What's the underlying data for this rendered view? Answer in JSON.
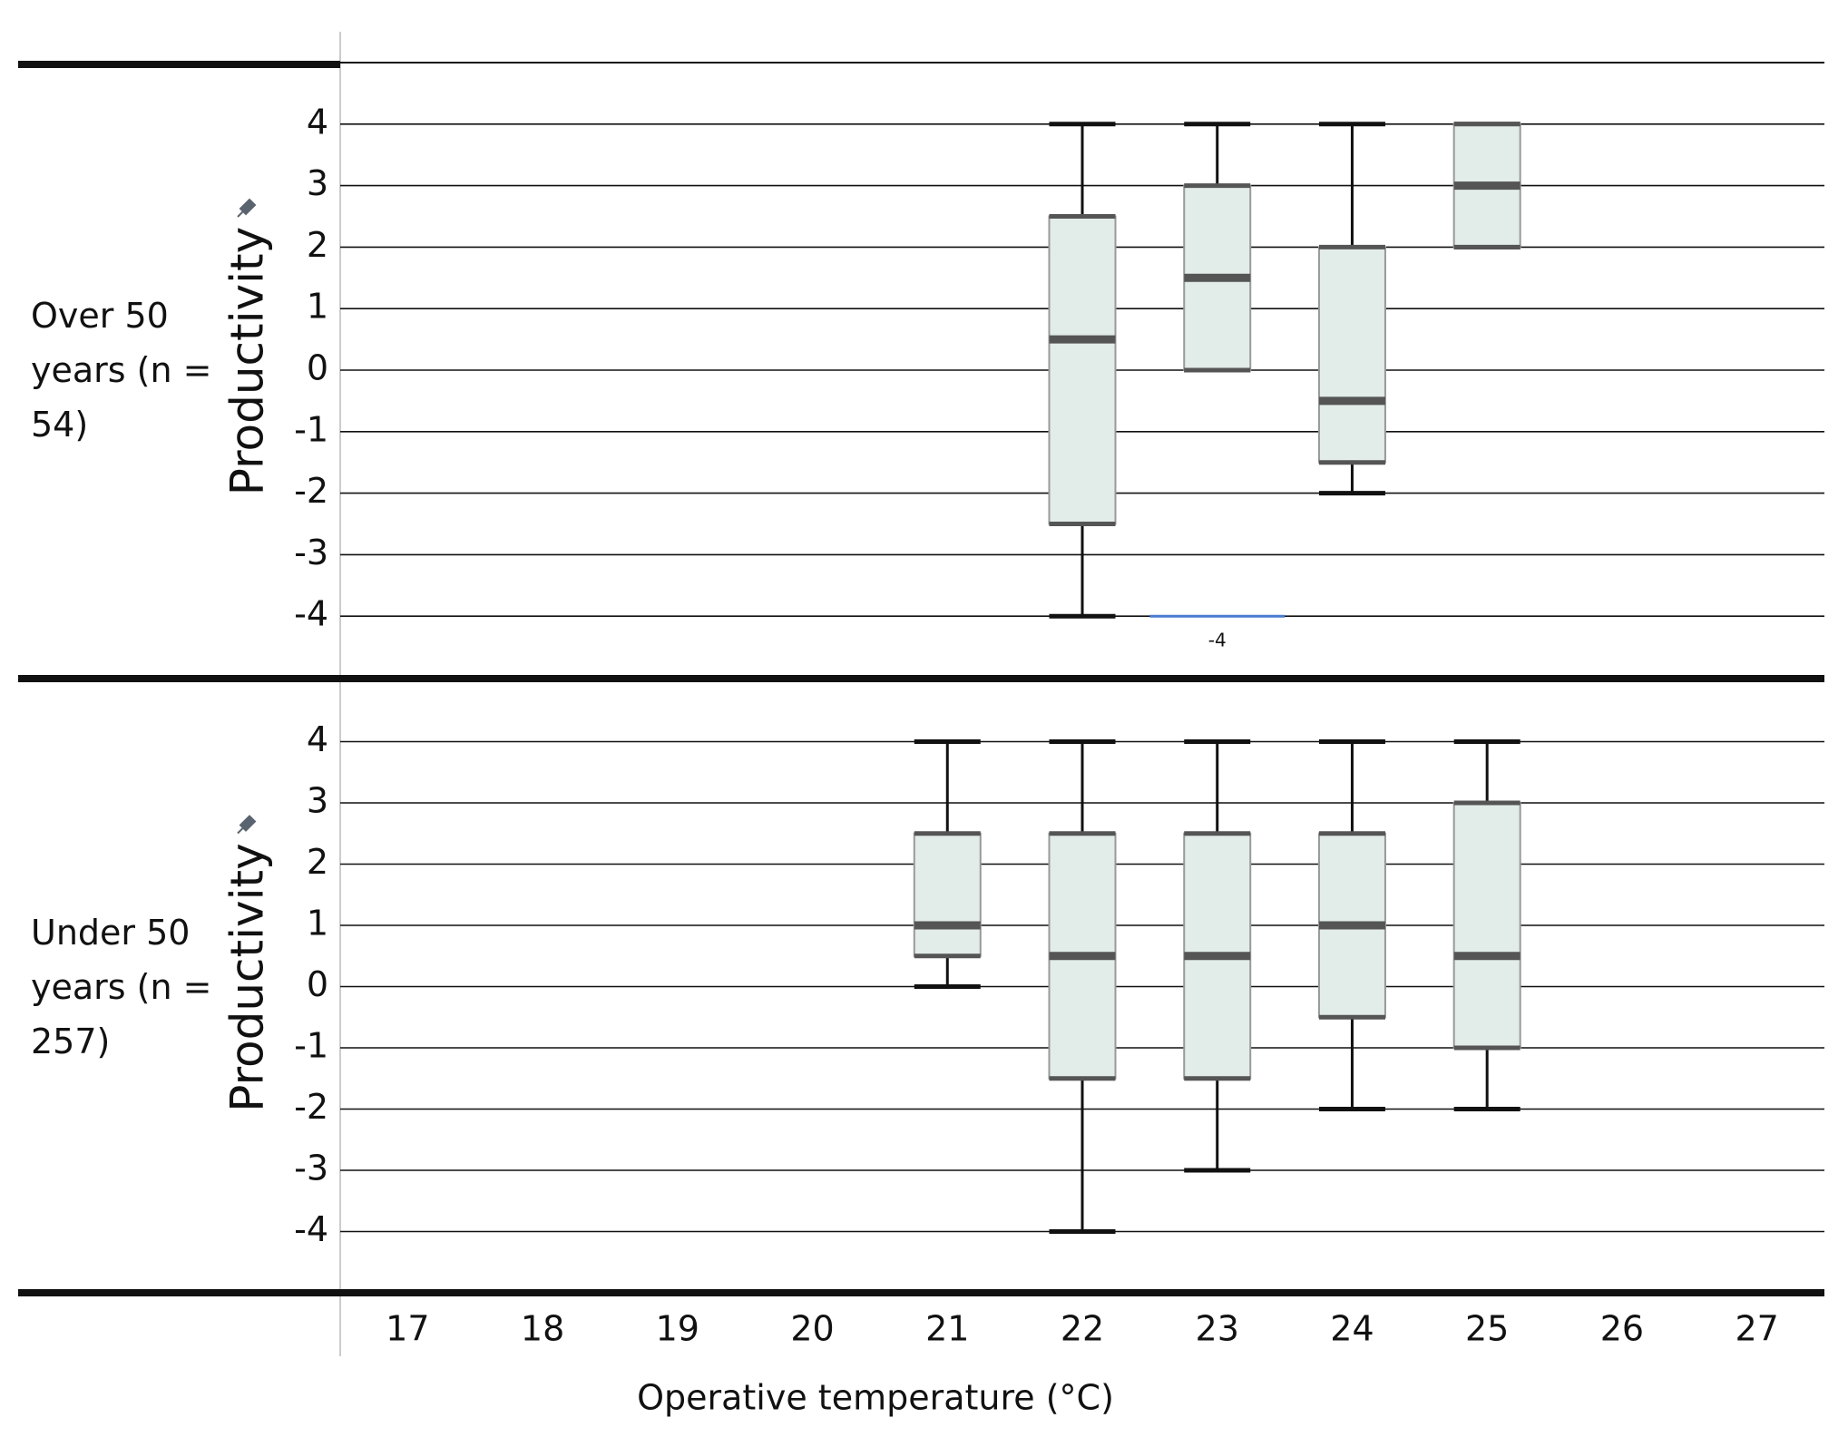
{
  "chart_data": {
    "type": "box",
    "xlabel": "Operative temperature (°C)",
    "ylabel": "Productivity",
    "xlim": [
      16.5,
      27.5
    ],
    "xticks": [
      17,
      18,
      19,
      20,
      21,
      22,
      23,
      24,
      25,
      26,
      27
    ],
    "ylim": [
      -5,
      5
    ],
    "yticks": [
      4,
      3,
      2,
      1,
      0,
      -1,
      -2,
      -3,
      -4
    ],
    "grid": true,
    "box_color": "#e2ece9",
    "panels": [
      {
        "label": "Over 50 years (n = 54)",
        "boxes": [
          {
            "x": 22,
            "min": -4,
            "q1": -2.5,
            "median": 0.5,
            "q3": 2.5,
            "max": 4
          },
          {
            "x": 23,
            "min": 0,
            "q1": 0,
            "median": 1.5,
            "q3": 3,
            "max": 4
          },
          {
            "x": 24,
            "min": -2,
            "q1": -1.5,
            "median": -0.5,
            "q3": 2,
            "max": 4
          },
          {
            "x": 25,
            "min": 2,
            "q1": 2,
            "median": 3,
            "q3": 4,
            "max": 4
          }
        ],
        "reference_line": {
          "value": -4,
          "x": [
            22.5,
            23.5
          ],
          "color": "#4a7bd0"
        }
      },
      {
        "label": "Under 50 years (n = 257)",
        "boxes": [
          {
            "x": 21,
            "min": 0,
            "q1": 0.5,
            "median": 1,
            "q3": 2.5,
            "max": 4
          },
          {
            "x": 22,
            "min": -4,
            "q1": -1.5,
            "median": 0.5,
            "q3": 2.5,
            "max": 4
          },
          {
            "x": 23,
            "min": -3,
            "q1": -1.5,
            "median": 0.5,
            "q3": 2.5,
            "max": 4
          },
          {
            "x": 24,
            "min": -2,
            "q1": -0.5,
            "median": 1,
            "q3": 2.5,
            "max": 4
          },
          {
            "x": 25,
            "min": -2,
            "q1": -1,
            "median": 0.5,
            "q3": 3,
            "max": 4
          }
        ]
      }
    ]
  }
}
